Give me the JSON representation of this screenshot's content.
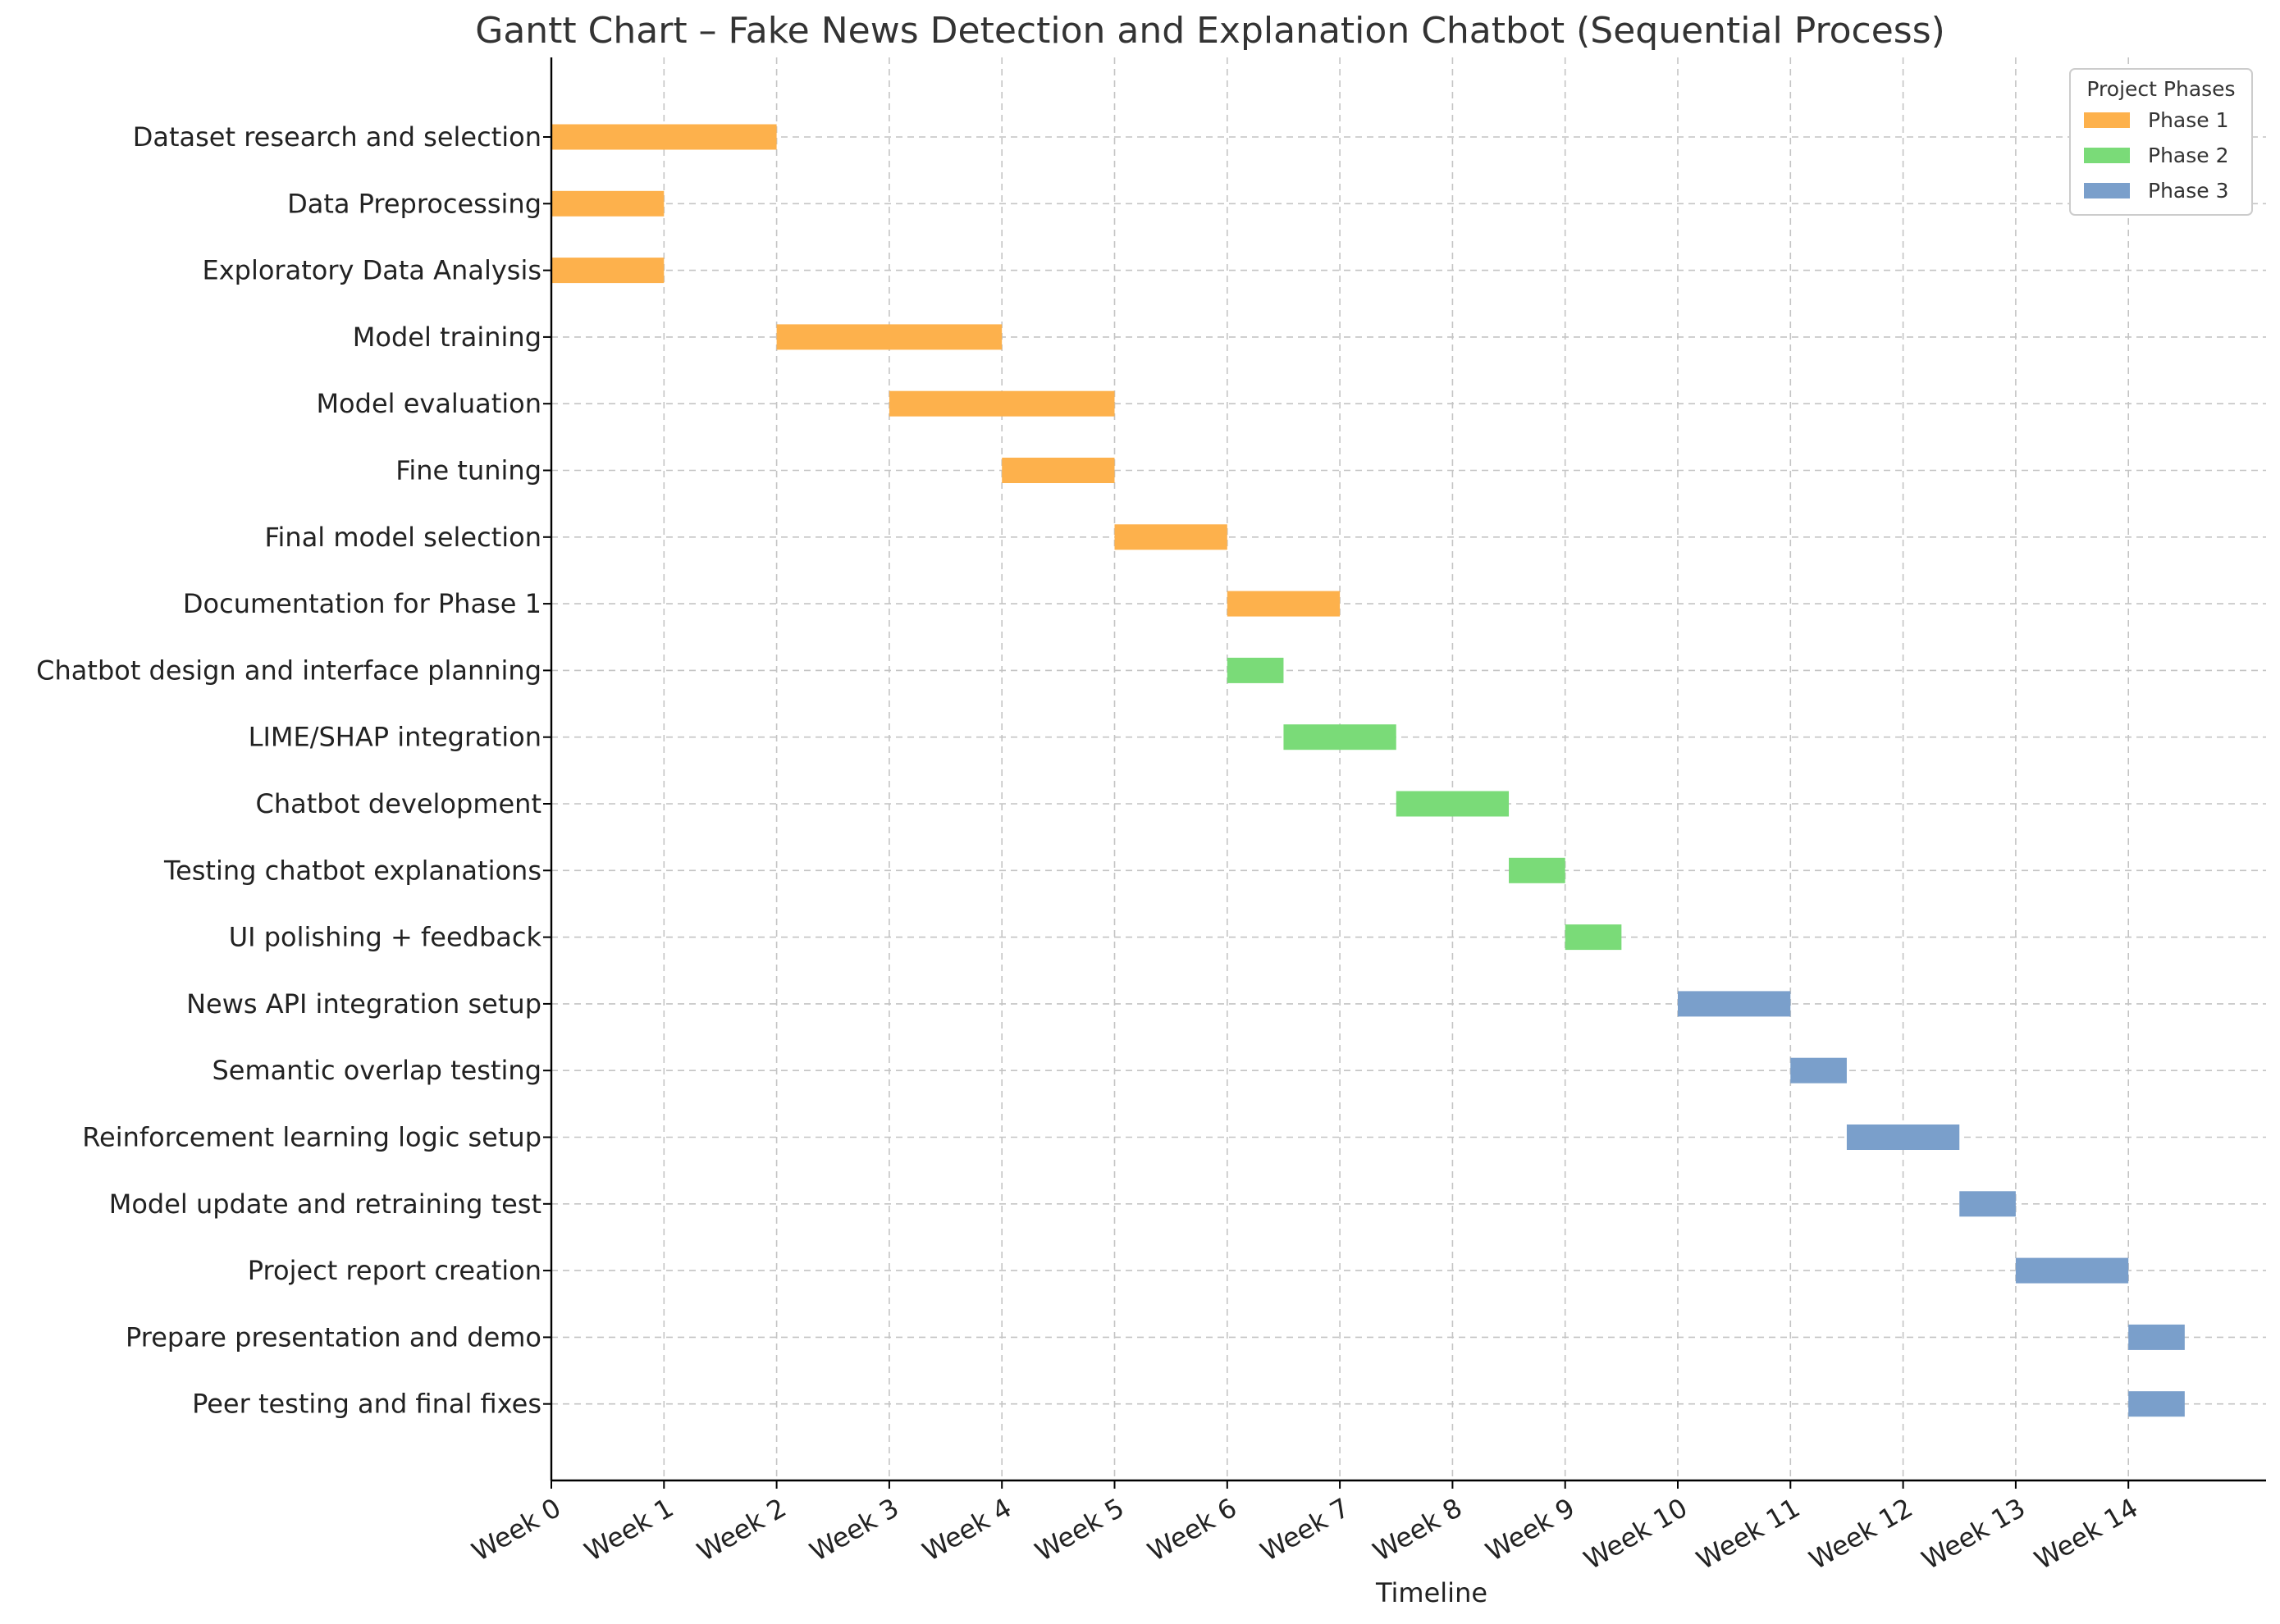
{
  "chart_data": {
    "type": "gantt",
    "title": "Gantt Chart – Fake News Detection and Explanation Chatbot (Sequential Process)",
    "xlabel": "Timeline",
    "ylabel": "",
    "xlim": [
      0,
      15.2
    ],
    "grid": true,
    "legend": {
      "title": "Project Phases",
      "placement": "top-right",
      "entries": [
        {
          "name": "Phase 1",
          "color": "#FDB14C"
        },
        {
          "name": "Phase 2",
          "color": "#7ADB78"
        },
        {
          "name": "Phase 3",
          "color": "#7A9FCB"
        }
      ]
    },
    "x_ticks": [
      "Week 0",
      "Week 1",
      "Week 2",
      "Week 3",
      "Week 4",
      "Week 5",
      "Week 6",
      "Week 7",
      "Week 8",
      "Week 9",
      "Week 10",
      "Week 11",
      "Week 12",
      "Week 13",
      "Week 14"
    ],
    "tasks": [
      {
        "name": "Dataset research and selection",
        "start": 0,
        "end": 2,
        "phase": "Phase 1"
      },
      {
        "name": "Data Preprocessing",
        "start": 0,
        "end": 1,
        "phase": "Phase 1"
      },
      {
        "name": "Exploratory Data Analysis",
        "start": 0,
        "end": 1,
        "phase": "Phase 1"
      },
      {
        "name": "Model training",
        "start": 2,
        "end": 4,
        "phase": "Phase 1"
      },
      {
        "name": "Model evaluation",
        "start": 3,
        "end": 5,
        "phase": "Phase 1"
      },
      {
        "name": "Fine tuning",
        "start": 4,
        "end": 5,
        "phase": "Phase 1"
      },
      {
        "name": "Final model selection",
        "start": 5,
        "end": 6,
        "phase": "Phase 1"
      },
      {
        "name": "Documentation for Phase 1",
        "start": 6,
        "end": 7,
        "phase": "Phase 1"
      },
      {
        "name": "Chatbot design and interface planning",
        "start": 6,
        "end": 6.5,
        "phase": "Phase 2"
      },
      {
        "name": "LIME/SHAP integration",
        "start": 6.5,
        "end": 7.5,
        "phase": "Phase 2"
      },
      {
        "name": "Chatbot development",
        "start": 7.5,
        "end": 8.5,
        "phase": "Phase 2"
      },
      {
        "name": "Testing chatbot explanations",
        "start": 8.5,
        "end": 9,
        "phase": "Phase 2"
      },
      {
        "name": "UI polishing + feedback",
        "start": 9,
        "end": 9.5,
        "phase": "Phase 2"
      },
      {
        "name": "News API integration setup",
        "start": 10,
        "end": 11,
        "phase": "Phase 3"
      },
      {
        "name": "Semantic overlap testing",
        "start": 11,
        "end": 11.5,
        "phase": "Phase 3"
      },
      {
        "name": "Reinforcement learning logic setup",
        "start": 11.5,
        "end": 12.5,
        "phase": "Phase 3"
      },
      {
        "name": "Model update and retraining test",
        "start": 12.5,
        "end": 13,
        "phase": "Phase 3"
      },
      {
        "name": "Project report creation",
        "start": 13,
        "end": 14,
        "phase": "Phase 3"
      },
      {
        "name": "Prepare presentation and demo",
        "start": 14,
        "end": 14.5,
        "phase": "Phase 3"
      },
      {
        "name": "Peer testing and final fixes",
        "start": 14,
        "end": 14.5,
        "phase": "Phase 3"
      }
    ]
  }
}
